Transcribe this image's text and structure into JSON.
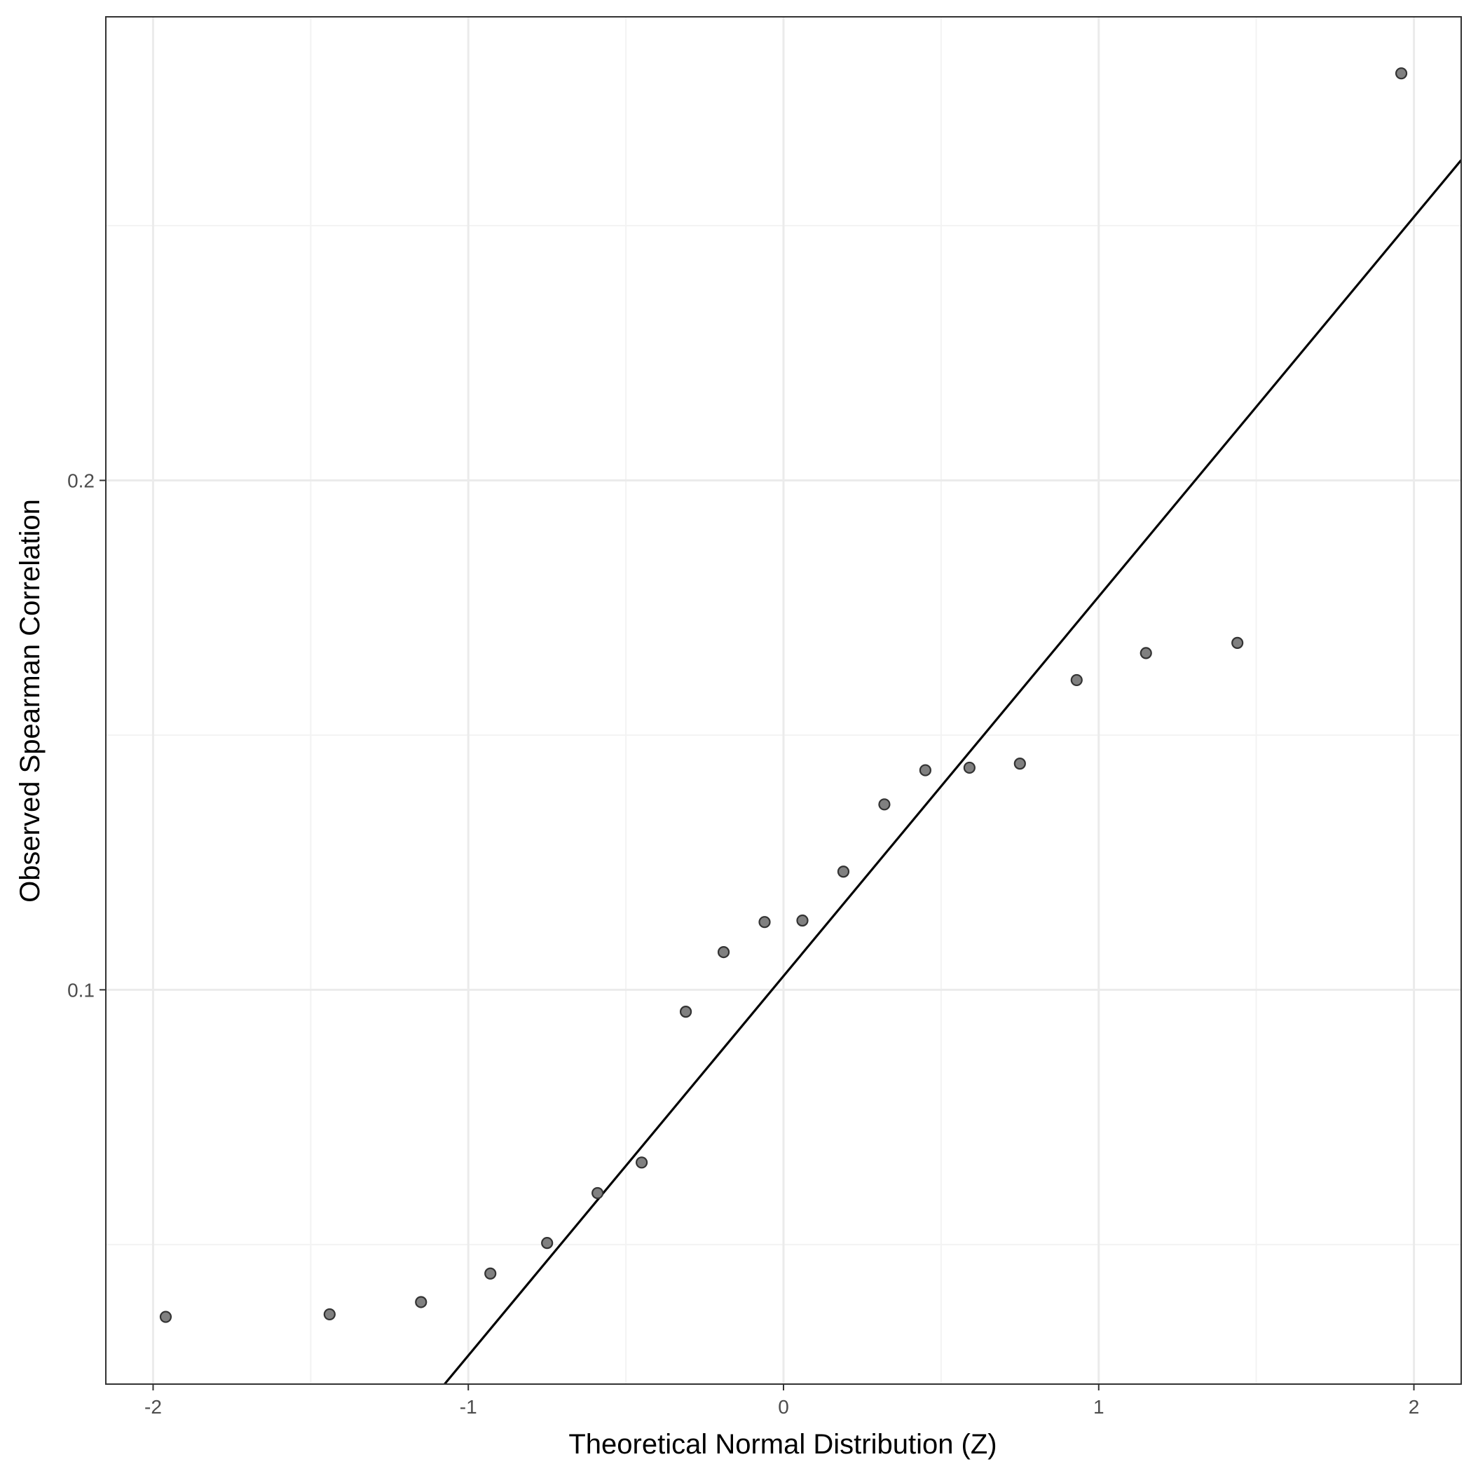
{
  "chart_data": {
    "type": "scatter",
    "subtype": "qq-plot",
    "xlabel": "Theoretical Normal Distribution (Z)",
    "ylabel": "Observed Spearman Correlation",
    "xlim": [
      -2.15,
      2.15
    ],
    "ylim": [
      0.0226,
      0.291
    ],
    "x_ticks": [
      {
        "value": -2,
        "label": "-2"
      },
      {
        "value": -1,
        "label": "-1"
      },
      {
        "value": 0,
        "label": "0"
      },
      {
        "value": 1,
        "label": "1"
      },
      {
        "value": 2,
        "label": "2"
      }
    ],
    "y_ticks": [
      {
        "value": 0.1,
        "label": "0.1"
      },
      {
        "value": 0.2,
        "label": "0.2"
      }
    ],
    "grid": true,
    "points": [
      {
        "x": -1.96,
        "y": 0.0358
      },
      {
        "x": -1.44,
        "y": 0.0363
      },
      {
        "x": -1.15,
        "y": 0.0387
      },
      {
        "x": -0.93,
        "y": 0.0443
      },
      {
        "x": -0.75,
        "y": 0.0503
      },
      {
        "x": -0.59,
        "y": 0.0601
      },
      {
        "x": -0.45,
        "y": 0.0661
      },
      {
        "x": -0.31,
        "y": 0.0957
      },
      {
        "x": -0.19,
        "y": 0.1074
      },
      {
        "x": -0.06,
        "y": 0.1133
      },
      {
        "x": 0.06,
        "y": 0.1136
      },
      {
        "x": 0.19,
        "y": 0.1232
      },
      {
        "x": 0.32,
        "y": 0.1364
      },
      {
        "x": 0.45,
        "y": 0.1431
      },
      {
        "x": 0.59,
        "y": 0.1436
      },
      {
        "x": 0.75,
        "y": 0.1444
      },
      {
        "x": 0.93,
        "y": 0.1608
      },
      {
        "x": 1.15,
        "y": 0.1661
      },
      {
        "x": 1.44,
        "y": 0.1681
      },
      {
        "x": 1.96,
        "y": 0.2799
      }
    ],
    "reference_line": {
      "intercept": 0.1027,
      "slope": 0.0745
    },
    "colors": {
      "points_fill": "#808080",
      "points_stroke": "#333333",
      "line": "#000000",
      "grid_major": "#ebebeb",
      "grid_minor": "#f3f3f3",
      "panel_border": "#333333"
    }
  }
}
